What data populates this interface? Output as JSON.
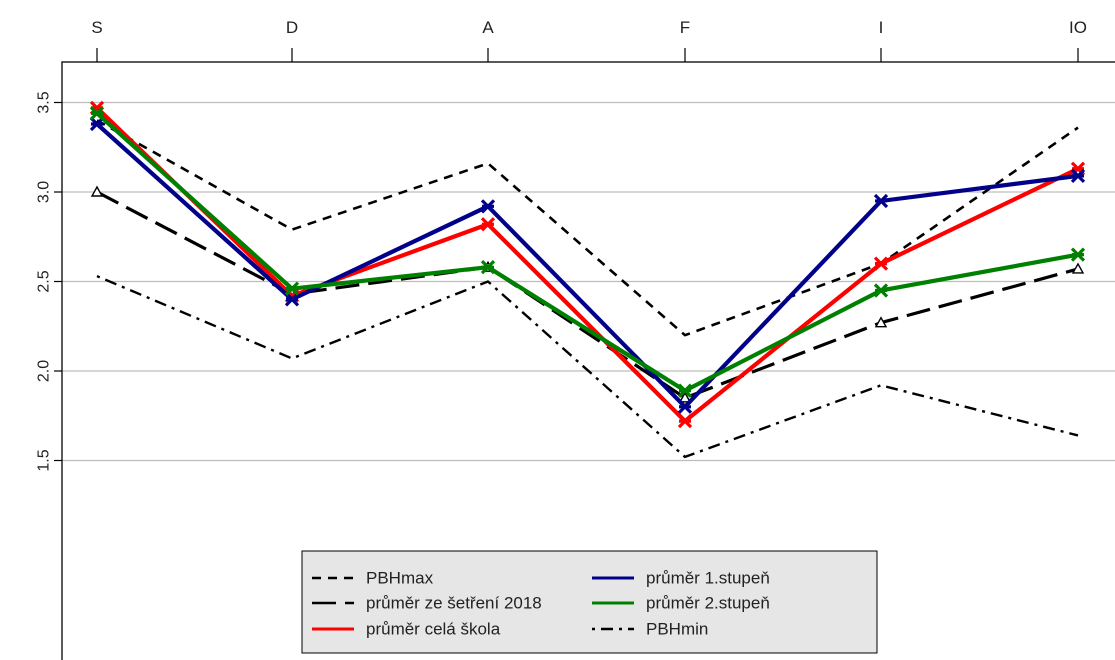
{
  "chart_data": {
    "type": "line",
    "categories": [
      "S",
      "D",
      "A",
      "F",
      "I",
      "IO"
    ],
    "ylim": [
      0.5,
      3.75
    ],
    "yticks": [
      "1.5",
      "2.0",
      "2.5",
      "3.0",
      "3.5"
    ],
    "grid": "horizontal",
    "legend_position": "bottom-center",
    "series": [
      {
        "name": "PBHmax",
        "values": [
          3.4,
          2.79,
          3.16,
          2.2,
          2.6,
          3.36
        ],
        "color": "#000000",
        "style": "dashed",
        "marker": "none"
      },
      {
        "name": "průměr ze šetření 2018",
        "values": [
          3.0,
          2.43,
          2.58,
          1.85,
          2.27,
          2.57
        ],
        "color": "#000000",
        "style": "longdash",
        "marker": "triangle"
      },
      {
        "name": "průměr celá škola",
        "values": [
          3.47,
          2.42,
          2.82,
          1.72,
          2.6,
          3.13
        ],
        "color": "#ff0000",
        "style": "solid",
        "marker": "cross"
      },
      {
        "name": "průměr 1.stupeň",
        "values": [
          3.38,
          2.4,
          2.92,
          1.8,
          2.95,
          3.09
        ],
        "color": "#00008b",
        "style": "solid",
        "marker": "cross"
      },
      {
        "name": "průměr 2.stupeň",
        "values": [
          3.44,
          2.46,
          2.58,
          1.89,
          2.45,
          2.65
        ],
        "color": "#008000",
        "style": "solid",
        "marker": "cross"
      },
      {
        "name": "PBHmin",
        "values": [
          2.53,
          2.07,
          2.5,
          1.52,
          1.92,
          1.64
        ],
        "color": "#000000",
        "style": "dotdash",
        "marker": "none"
      }
    ],
    "legend_order": [
      [
        "PBHmax",
        "průměr 1.stupeň"
      ],
      [
        "průměr ze šetření 2018",
        "průměr 2.stupeň"
      ],
      [
        "průměr celá škola",
        "PBHmin"
      ]
    ]
  }
}
